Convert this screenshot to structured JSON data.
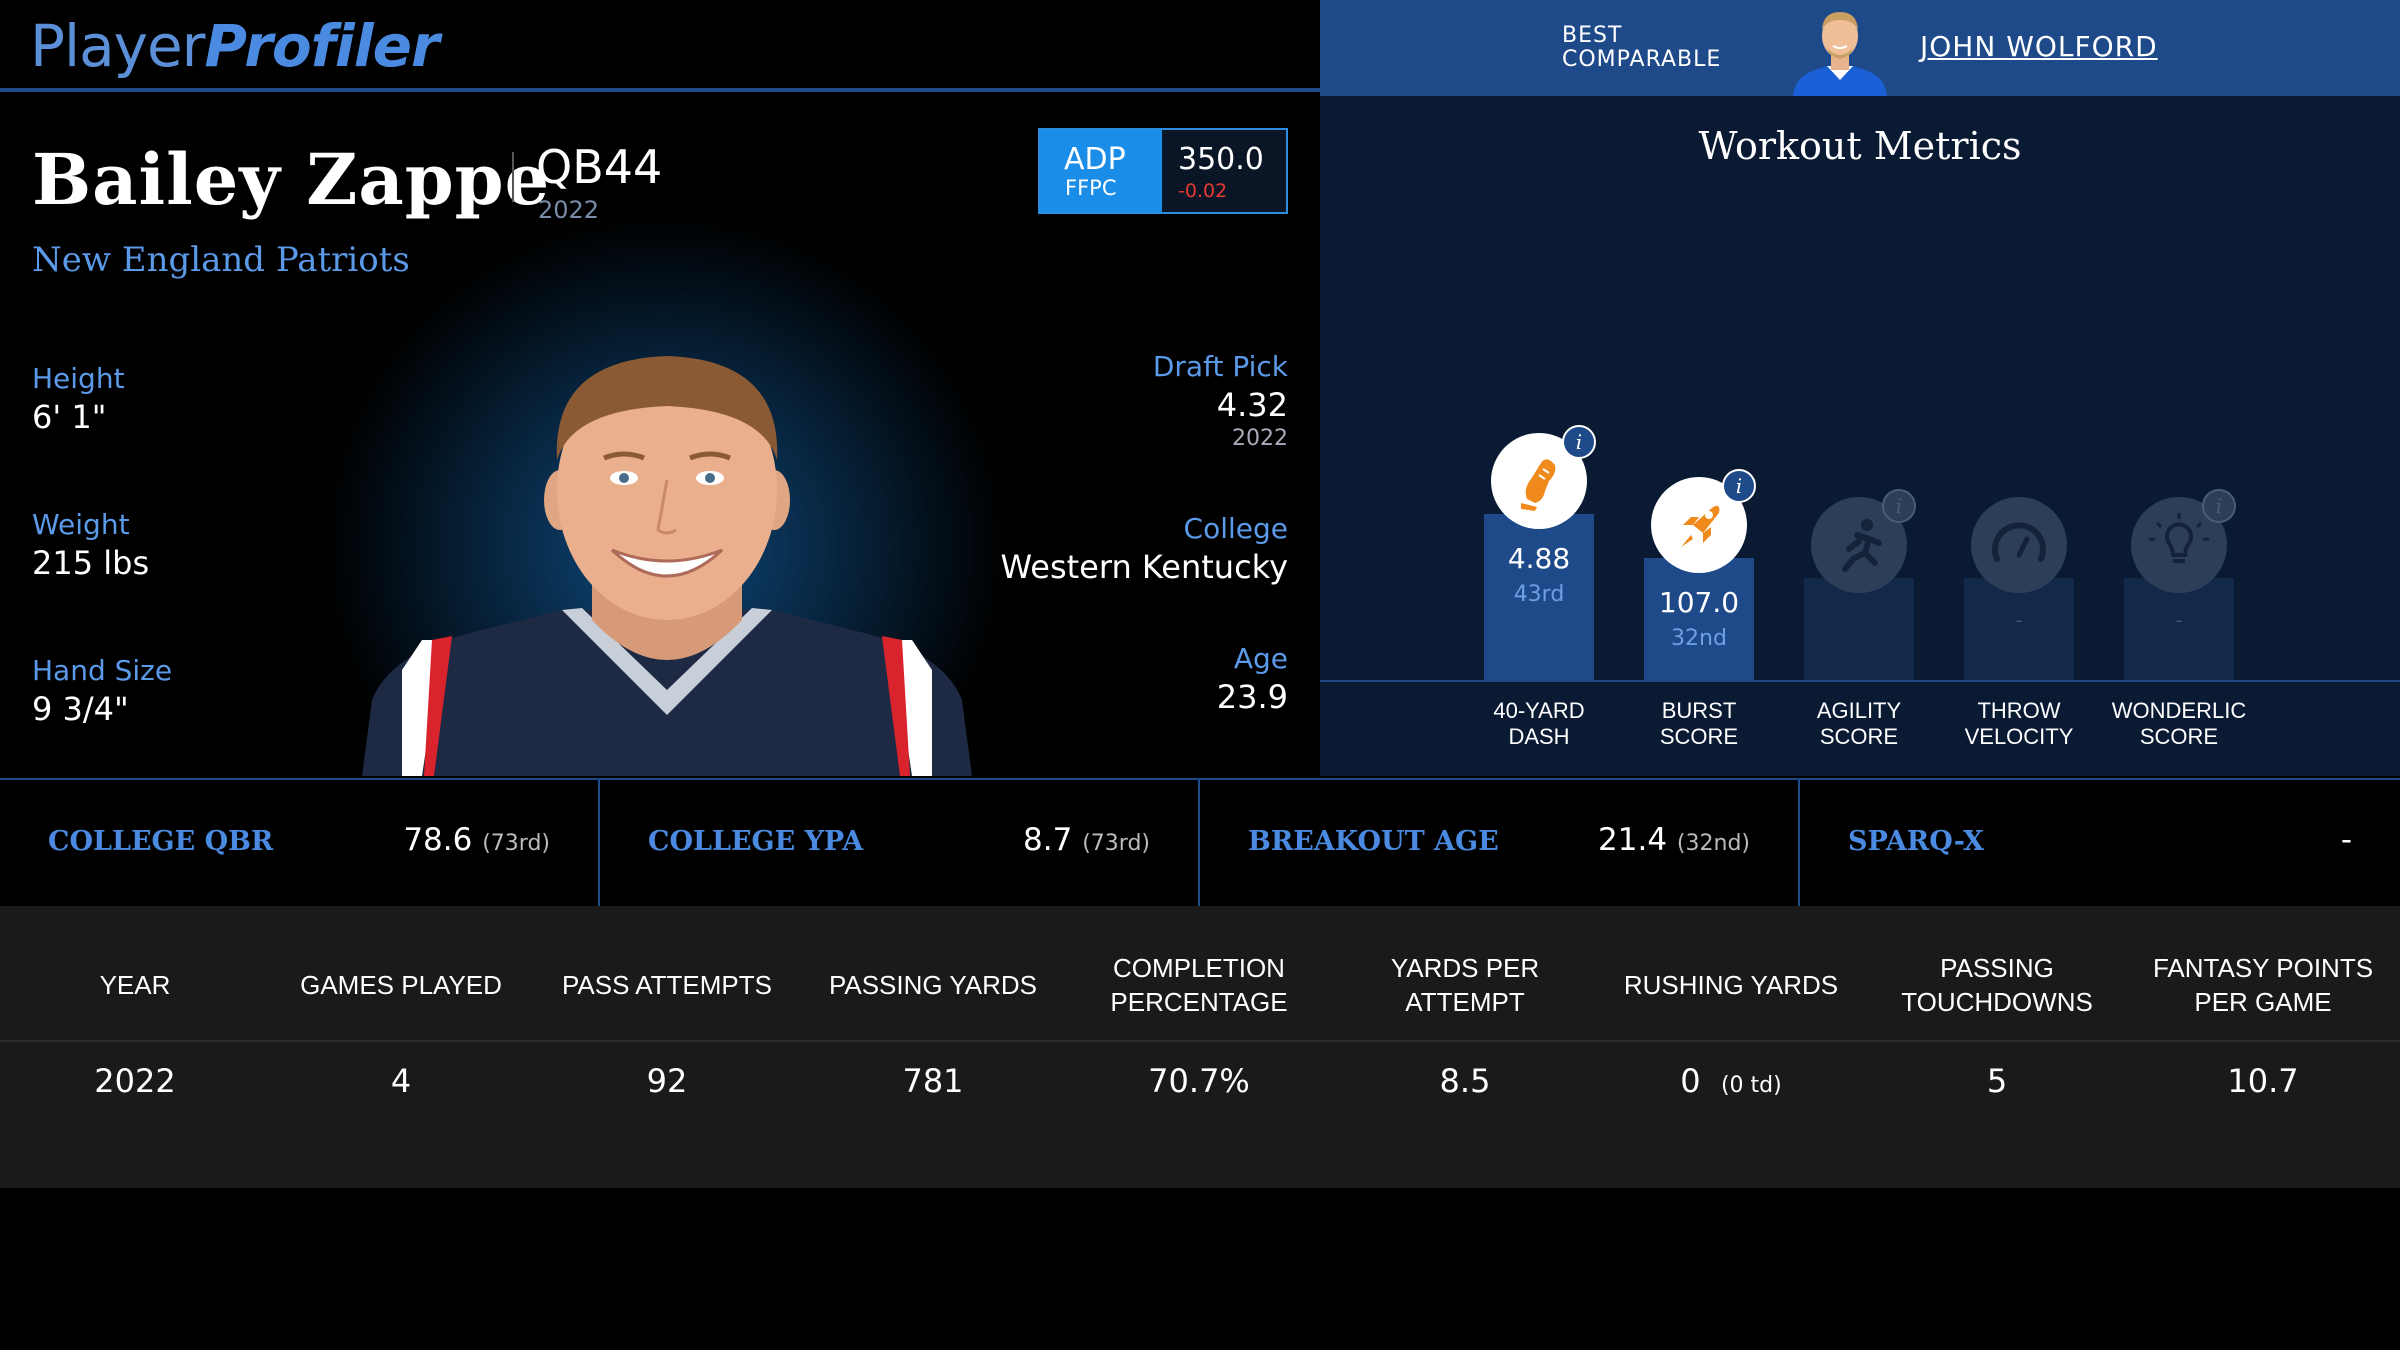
{
  "header": {
    "logo_part1": "Player",
    "logo_part2": "Profiler",
    "comparable_line1": "BEST",
    "comparable_line2": "COMPARABLE",
    "comparable_name": "JOHN WOLFORD"
  },
  "player": {
    "name": "Bailey Zappe",
    "position_rank": "QB44",
    "year": "2022",
    "team": "New England Patriots",
    "adp": {
      "label": "ADP",
      "source": "FFPC",
      "value": "350.0",
      "change": "-0.02"
    },
    "bio_left": [
      {
        "label": "Height",
        "value": "6' 1\""
      },
      {
        "label": "Weight",
        "value": "215 lbs"
      },
      {
        "label": "Hand Size",
        "value": "9 3/4\""
      }
    ],
    "draft_pick": {
      "label": "Draft Pick",
      "value": "4.32",
      "year": "2022"
    },
    "college": {
      "label": "College",
      "value": "Western Kentucky"
    },
    "age": {
      "label": "Age",
      "value": "23.9"
    }
  },
  "workout": {
    "title": "Workout Metrics",
    "metrics": [
      {
        "label1": "40-YARD",
        "label2": "DASH",
        "value": "4.88",
        "rank": "43rd",
        "icon": "shoe-icon",
        "percentile": 43
      },
      {
        "label1": "BURST",
        "label2": "SCORE",
        "value": "107.0",
        "rank": "32nd",
        "icon": "rocket-icon",
        "percentile": 32
      },
      {
        "label1": "AGILITY",
        "label2": "SCORE",
        "value": "",
        "rank": "",
        "icon": "runner-icon",
        "percentile": null
      },
      {
        "label1": "THROW",
        "label2": "VELOCITY",
        "value": "-",
        "rank": "",
        "icon": "gauge-icon",
        "percentile": null
      },
      {
        "label1": "WONDERLIC",
        "label2": "SCORE",
        "value": "-",
        "rank": "",
        "icon": "lightbulb-icon",
        "percentile": null
      }
    ]
  },
  "stats_strip": [
    {
      "label": "COLLEGE QBR",
      "value": "78.6",
      "rank": "(73rd)"
    },
    {
      "label": "COLLEGE YPA",
      "value": "8.7",
      "rank": "(73rd)"
    },
    {
      "label": "BREAKOUT AGE",
      "value": "21.4",
      "rank": "(32nd)"
    },
    {
      "label": "SPARQ-X",
      "value": "-",
      "rank": ""
    }
  ],
  "table": {
    "headers": [
      "YEAR",
      "GAMES PLAYED",
      "PASS ATTEMPTS",
      "PASSING YARDS",
      "COMPLETION PERCENTAGE",
      "YARDS PER ATTEMPT",
      "RUSHING YARDS",
      "PASSING TOUCHDOWNS",
      "FANTASY POINTS PER GAME"
    ],
    "rows": [
      {
        "year": "2022",
        "games": "4",
        "attempts": "92",
        "yards": "781",
        "comp_pct": "70.7%",
        "ypa": "8.5",
        "rush_yards": "0",
        "rush_td": "(0 td)",
        "pass_td": "5",
        "fppg": "10.7"
      }
    ]
  },
  "colors": {
    "accent": "#1e4a8a",
    "link": "#5b9ae8",
    "orange": "#f08a1c",
    "negative": "#e53935"
  }
}
